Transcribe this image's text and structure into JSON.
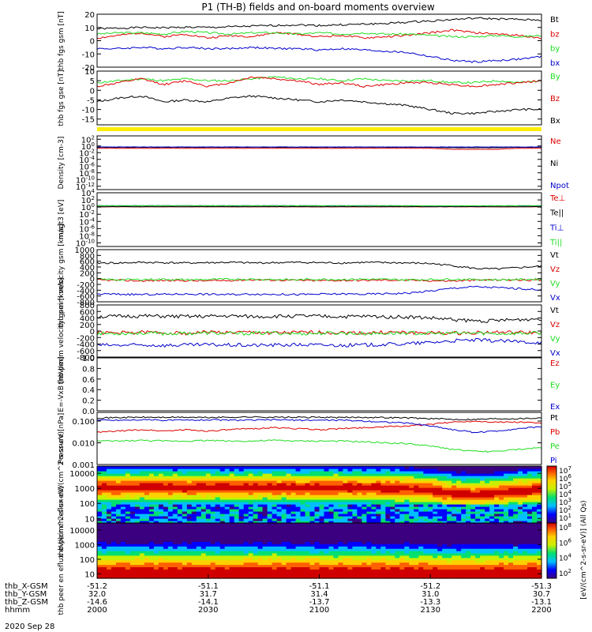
{
  "title": "P1 (TH-B) fields and on-board moments overview",
  "date_label": "2020 Sep 28",
  "colors": {
    "black": "#000000",
    "red": "#dd0000",
    "green": "#22dd22",
    "blue": "#0000cc",
    "yellow": "#ffee00"
  },
  "chart_data": [
    {
      "type": "line",
      "ylabel": "thb fgs gsm [nT]",
      "ylim": [
        -20,
        20
      ],
      "ticks": [
        "20",
        "10",
        "0",
        "-10",
        "-20"
      ],
      "grid": false,
      "series": [
        {
          "name": "Bt",
          "color": "black",
          "values": [
            9,
            9.5,
            10,
            9.8,
            10.2,
            10,
            10.5,
            11,
            11.5,
            12,
            11.5,
            12,
            12.5,
            13,
            14,
            15,
            16,
            17,
            16.5,
            16,
            15.5
          ]
        },
        {
          "name": "bz",
          "color": "red",
          "values": [
            2,
            4,
            6,
            3,
            5,
            2,
            4,
            3,
            6,
            5,
            3,
            4,
            2,
            3,
            4,
            6,
            8,
            6,
            5,
            4,
            2
          ]
        },
        {
          "name": "by",
          "color": "green",
          "values": [
            5,
            6,
            6,
            5,
            7,
            6,
            5,
            6,
            6,
            5,
            6,
            5,
            6,
            5,
            5,
            4,
            3,
            3,
            4,
            3,
            4
          ]
        },
        {
          "name": "bx",
          "color": "blue",
          "values": [
            -6,
            -6,
            -5,
            -6,
            -5,
            -6,
            -6,
            -5,
            -6,
            -6,
            -7,
            -6,
            -7,
            -8,
            -9,
            -12,
            -15,
            -16,
            -15,
            -14,
            -12
          ]
        }
      ]
    },
    {
      "type": "line",
      "ylabel": "thb fgs gse [nT]",
      "ylim": [
        -18,
        10
      ],
      "ticks": [
        "10",
        "5",
        "0",
        "-5",
        "-10",
        "-15"
      ],
      "grid": false,
      "series": [
        {
          "name": "By",
          "color": "green",
          "values": [
            4,
            5,
            6,
            5,
            6,
            5,
            5,
            6,
            7,
            6,
            6,
            5,
            6,
            5,
            5,
            5,
            4,
            4,
            5,
            4,
            5
          ]
        },
        {
          "name": "Bz",
          "color": "red",
          "values": [
            2,
            4,
            6,
            3,
            5,
            2,
            4,
            7,
            6,
            5,
            3,
            4,
            2,
            3,
            4,
            4,
            3,
            2,
            3,
            4,
            5
          ]
        },
        {
          "name": "Bx",
          "color": "black",
          "values": [
            -6,
            -4,
            -3,
            -6,
            -5,
            -6,
            -4,
            -3,
            -4,
            -5,
            -6,
            -5,
            -6,
            -7,
            -8,
            -10,
            -12,
            -12,
            -11,
            -10,
            -10
          ]
        }
      ]
    },
    {
      "type": "line",
      "ylabel": "Density [cm-3]",
      "scale": "log",
      "ylim": [
        -13,
        3
      ],
      "ticks": [
        "10^2",
        "10^0",
        "10^-2",
        "10^-4",
        "10^-6",
        "10^-8",
        "10^-10",
        "10^-12"
      ],
      "series": [
        {
          "name": "Ne",
          "color": "red",
          "values": [
            0.2,
            0.2,
            0.2,
            0.2,
            0.2,
            0.2,
            0.2,
            0.2,
            0.2,
            0.2,
            0.2,
            0.2,
            0.2,
            0.2,
            0.2,
            0.2,
            0.1,
            0.1,
            0.1,
            0.2,
            0.2
          ]
        },
        {
          "name": "Ni",
          "color": "black",
          "values": [
            0.4,
            0.4,
            0.4,
            0.4,
            0.4,
            0.4,
            0.4,
            0.4,
            0.4,
            0.4,
            0.4,
            0.4,
            0.4,
            0.4,
            0.4,
            0.4,
            0.3,
            0.3,
            0.3,
            0.4,
            0.4
          ]
        },
        {
          "name": "Npot",
          "color": "blue",
          "values": [
            0.5,
            0.5,
            0.5,
            0.5,
            0.5,
            0.5,
            0.5,
            0.5,
            0.5,
            0.5,
            0.5,
            0.5,
            0.5,
            0.5,
            0.5,
            0.5,
            0.5,
            0.5,
            0.5,
            0.5,
            0.5
          ]
        }
      ]
    },
    {
      "type": "line",
      "ylabel": "magt3 [eV]",
      "scale": "log",
      "ylim": [
        -11,
        4
      ],
      "ticks": [
        "10^4",
        "10^2",
        "10^0",
        "10^-2",
        "10^-4",
        "10^-6",
        "10^-8",
        "10^-10"
      ],
      "series": [
        {
          "name": "Te⊥",
          "color": "red",
          "values": [
            1.2,
            1.2,
            1.2,
            1.2,
            1.2,
            1.2,
            1.2,
            1.2,
            1.2,
            1.2,
            1.2,
            1.2,
            1.2,
            1.2,
            1.2,
            1.2,
            1.2,
            1.2,
            1.2,
            1.2,
            1.2
          ]
        },
        {
          "name": "Te||",
          "color": "black",
          "values": [
            1.3,
            1.3,
            1.3,
            1.3,
            1.3,
            1.3,
            1.3,
            1.3,
            1.3,
            1.3,
            1.3,
            1.3,
            1.3,
            1.3,
            1.3,
            1.3,
            1.3,
            1.3,
            1.3,
            1.3,
            1.3
          ]
        },
        {
          "name": "Ti⊥",
          "color": "blue",
          "values": [
            2.4,
            2.4,
            2.4,
            2.4,
            2.4,
            2.4,
            2.4,
            2.4,
            2.4,
            2.4,
            2.4,
            2.4,
            2.4,
            2.4,
            2.3,
            2.2,
            2.1,
            2.2,
            2.3,
            2.3,
            2.4
          ]
        },
        {
          "name": "Ti||",
          "color": "green",
          "values": [
            2.5,
            2.5,
            2.5,
            2.5,
            2.5,
            2.5,
            2.5,
            2.5,
            2.5,
            2.5,
            2.5,
            2.5,
            2.5,
            2.5,
            2.4,
            2.3,
            2.2,
            2.3,
            2.4,
            2.4,
            2.5
          ]
        }
      ]
    },
    {
      "type": "line",
      "ylabel": "thb peim velocity gsm [km/s]",
      "ylim": [
        -800,
        1000
      ],
      "ticks": [
        "1000",
        "800",
        "600",
        "400",
        "200",
        "0",
        "-200",
        "-400",
        "-600",
        "-800"
      ],
      "series": [
        {
          "name": "Vt",
          "color": "black",
          "values": [
            540,
            540,
            560,
            550,
            540,
            550,
            560,
            540,
            550,
            560,
            550,
            540,
            560,
            550,
            540,
            520,
            450,
            350,
            330,
            380,
            430
          ]
        },
        {
          "name": "Vz",
          "color": "red",
          "values": [
            -50,
            -60,
            -80,
            -60,
            -70,
            -80,
            -60,
            -40,
            -50,
            -60,
            -70,
            -60,
            -60,
            -50,
            -60,
            -70,
            -80,
            -60,
            -40,
            -50,
            -60
          ]
        },
        {
          "name": "Vy",
          "color": "green",
          "values": [
            -20,
            -40,
            -30,
            -20,
            -40,
            -30,
            -20,
            -20,
            -30,
            -40,
            -20,
            -30,
            -20,
            -30,
            -40,
            -30,
            -20,
            -30,
            -40,
            -30,
            -20
          ]
        },
        {
          "name": "Vx",
          "color": "blue",
          "values": [
            -530,
            -540,
            -550,
            -540,
            -530,
            -540,
            -550,
            -530,
            -540,
            -550,
            -540,
            -530,
            -540,
            -520,
            -500,
            -430,
            -330,
            -280,
            -310,
            -350,
            -380
          ]
        }
      ]
    },
    {
      "type": "line",
      "ylabel": "thb peem velocity gsm [km/s]",
      "ylim": [
        -800,
        800
      ],
      "ticks": [
        "800",
        "600",
        "400",
        "200",
        "0",
        "-200",
        "-400",
        "-600",
        "-800"
      ],
      "series": [
        {
          "name": "Vt",
          "color": "black",
          "values": [
            440,
            450,
            460,
            450,
            440,
            450,
            460,
            440,
            450,
            460,
            450,
            440,
            450,
            440,
            430,
            400,
            350,
            310,
            320,
            350,
            380
          ]
        },
        {
          "name": "Vz",
          "color": "red",
          "values": [
            -50,
            -60,
            -40,
            -50,
            -70,
            -30,
            -50,
            -40,
            -60,
            -50,
            -40,
            -50,
            -60,
            -40,
            -50,
            -60,
            -70,
            -50,
            -40,
            -50,
            -60
          ]
        },
        {
          "name": "Vy",
          "color": "green",
          "values": [
            -80,
            -70,
            -60,
            -80,
            -70,
            -60,
            -80,
            -70,
            -60,
            -80,
            -70,
            -60,
            -80,
            -70,
            -60,
            -80,
            -70,
            -60,
            -80,
            -70,
            -60
          ]
        },
        {
          "name": "Vx",
          "color": "blue",
          "values": [
            -430,
            -440,
            -430,
            -440,
            -430,
            -420,
            -430,
            -440,
            -430,
            -420,
            -430,
            -440,
            -430,
            -410,
            -390,
            -350,
            -300,
            -280,
            -300,
            -330,
            -350
          ]
        }
      ]
    },
    {
      "type": "line",
      "ylabel": "E=-VxB [mV/m]",
      "ylim": [
        0,
        1
      ],
      "ticks": [
        "1.0",
        "0.8",
        "0.6",
        "0.4",
        "0.2",
        "0.0"
      ],
      "series": [
        {
          "name": "Ez",
          "color": "red",
          "values": []
        },
        {
          "name": "Ey",
          "color": "green",
          "values": []
        },
        {
          "name": "Ex",
          "color": "blue",
          "values": []
        }
      ]
    },
    {
      "type": "line",
      "ylabel": "Pressure [nPa]",
      "scale": "log",
      "ylim": [
        -3,
        -0.6
      ],
      "ticks": [
        "0.100",
        "0.010",
        "0.001"
      ],
      "series": [
        {
          "name": "Pt",
          "color": "black",
          "values": [
            0.14,
            0.145,
            0.15,
            0.148,
            0.15,
            0.145,
            0.15,
            0.155,
            0.15,
            0.148,
            0.15,
            0.145,
            0.15,
            0.145,
            0.14,
            0.13,
            0.12,
            0.12,
            0.13,
            0.13,
            0.14
          ]
        },
        {
          "name": "Pb",
          "color": "red",
          "values": [
            0.03,
            0.035,
            0.04,
            0.035,
            0.04,
            0.035,
            0.04,
            0.045,
            0.05,
            0.045,
            0.04,
            0.045,
            0.05,
            0.055,
            0.06,
            0.07,
            0.09,
            0.1,
            0.09,
            0.09,
            0.08
          ]
        },
        {
          "name": "Pe",
          "color": "green",
          "values": [
            0.012,
            0.012,
            0.013,
            0.012,
            0.012,
            0.013,
            0.012,
            0.012,
            0.013,
            0.012,
            0.012,
            0.012,
            0.011,
            0.01,
            0.009,
            0.007,
            0.005,
            0.004,
            0.004,
            0.005,
            0.006
          ]
        },
        {
          "name": "Pi",
          "color": "blue",
          "values": [
            0.11,
            0.11,
            0.115,
            0.11,
            0.11,
            0.115,
            0.11,
            0.11,
            0.115,
            0.11,
            0.11,
            0.11,
            0.1,
            0.09,
            0.08,
            0.06,
            0.04,
            0.03,
            0.035,
            0.045,
            0.055
          ]
        }
      ]
    },
    {
      "type": "heatmap",
      "ylabel": "thb peir en eflux eV/(cm^2-s-sr-eV)",
      "scale": "log",
      "ylim": [
        5,
        30000
      ],
      "ticks": [
        "10000",
        "1000",
        "100",
        "10"
      ],
      "colorbar_ticks": [
        "10^7",
        "10^6",
        "10^5",
        "10^4",
        "10^3",
        "10^2",
        "10^1"
      ],
      "colorbar_label": "[eV/(cm^2-s-sr-eV)] (All Qs)",
      "peak_energy_eV": [
        1200,
        1200,
        1300,
        1200,
        1200,
        1300,
        1200,
        1200,
        1300,
        1200,
        1200,
        1200,
        1200,
        1100,
        1000,
        800,
        500,
        400,
        500,
        700,
        900
      ]
    },
    {
      "type": "heatmap",
      "ylabel": "thb peer en eflux eV/(cm^2-s-sr-eV)",
      "scale": "log",
      "ylim": [
        5,
        30000
      ],
      "ticks": [
        "10000",
        "1000",
        "100",
        "10"
      ],
      "colorbar_ticks": [
        "10^8",
        "10^6",
        "10^4",
        "10^2"
      ],
      "peak_energy_eV": [
        15,
        15,
        16,
        15,
        15,
        16,
        15,
        15,
        16,
        15,
        15,
        15,
        15,
        14,
        14,
        13,
        12,
        12,
        13,
        13,
        14
      ]
    }
  ],
  "x_axis": {
    "row_labels": [
      "thb_X-GSM",
      "thb_Y-GSM",
      "thb_Z-GSM",
      "hhmm"
    ],
    "columns": [
      [
        "-51.2",
        "32.0",
        "-14.6",
        "2000"
      ],
      [
        "-51.1",
        "31.7",
        "-14.1",
        "2030"
      ],
      [
        "-51.1",
        "31.4",
        "-13.7",
        "2100"
      ],
      [
        "-51.2",
        "31.0",
        "-13.3",
        "2130"
      ],
      [
        "-51.3",
        "30.7",
        "-13.1",
        "2200"
      ]
    ]
  }
}
